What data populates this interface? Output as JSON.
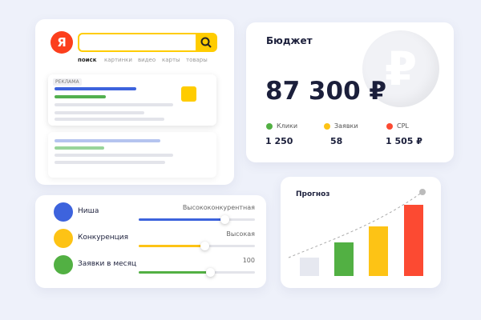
{
  "search": {
    "logo": "Я",
    "tabs": [
      "поиск",
      "картинки",
      "видео",
      "карты",
      "товары"
    ],
    "ad_label": "РЕКЛАМА"
  },
  "budget": {
    "title": "Бюджет",
    "amount": "87 300 ₽",
    "metrics": [
      {
        "label": "Клики",
        "value": "1 250"
      },
      {
        "label": "Заявки",
        "value": "58"
      },
      {
        "label": "CPL",
        "value": "1 505 ₽"
      }
    ]
  },
  "settings": {
    "rows": [
      {
        "label": "Ниша",
        "value": "Высококонкурентная"
      },
      {
        "label": "Конкуренция",
        "value": "Высокая"
      },
      {
        "label": "Заявки в месяц",
        "value": "100"
      }
    ]
  },
  "forecast": {
    "title": "Прогноз"
  }
}
